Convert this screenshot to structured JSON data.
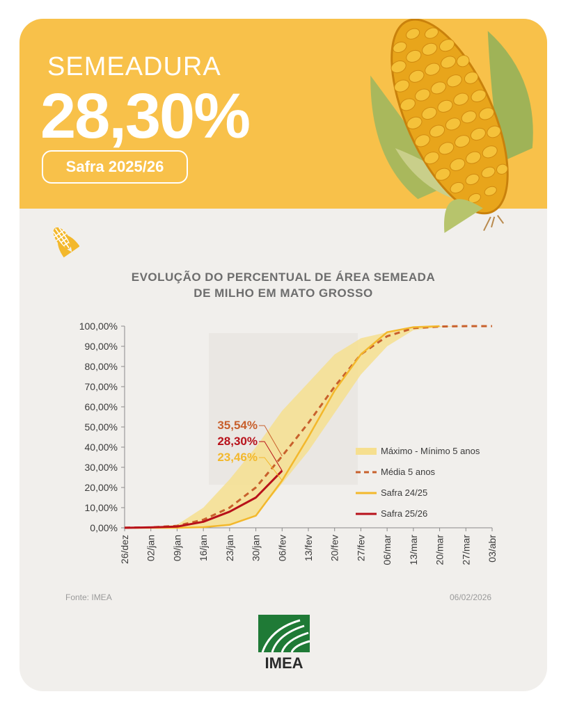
{
  "header": {
    "title": "SEMEADURA",
    "value": "28,30%",
    "season": "Safra 2025/26"
  },
  "footer": {
    "source": "Fonte: IMEA",
    "date": "06/02/2026",
    "logo_text": "IMEA"
  },
  "colors": {
    "banner": "#f8c14a",
    "band": "#f6df8f",
    "media": "#c8602c",
    "safra_24_25": "#f3b82c",
    "safra_25_26": "#b8111a"
  },
  "chart_data": {
    "type": "line",
    "title_lines": [
      "EVOLUÇÃO DO PERCENTUAL DE ÁREA SEMEADA",
      "DE MILHO EM MATO GROSSO"
    ],
    "categories": [
      "26/dez",
      "02/jan",
      "09/jan",
      "16/jan",
      "23/jan",
      "30/jan",
      "06/fev",
      "13/fev",
      "20/fev",
      "27/fev",
      "06/mar",
      "13/mar",
      "20/mar",
      "27/mar",
      "03/abr"
    ],
    "y_ticks": [
      "0,00%",
      "10,00%",
      "20,00%",
      "30,00%",
      "40,00%",
      "50,00%",
      "60,00%",
      "70,00%",
      "80,00%",
      "90,00%",
      "100,00%"
    ],
    "ylim": [
      0,
      100
    ],
    "band": {
      "name": "Máximo - Mínimo 5 anos",
      "max": [
        0.2,
        0.4,
        1.5,
        10,
        24,
        40,
        58,
        72,
        86,
        94,
        97,
        99,
        100,
        100,
        100
      ],
      "min": [
        0,
        0,
        0,
        0,
        1,
        6,
        22,
        38,
        57,
        76,
        90,
        98,
        99.5,
        100,
        100
      ]
    },
    "series": [
      {
        "name": "Média 5 anos",
        "style": "dashed",
        "values": [
          0.1,
          0.2,
          1,
          4,
          10,
          20,
          35.54,
          52,
          70,
          86,
          95,
          99,
          99.8,
          100,
          100
        ]
      },
      {
        "name": "Safra 24/25",
        "style": "solid",
        "values": [
          0,
          0,
          0,
          0.3,
          1.5,
          6,
          23.46,
          45,
          68,
          86,
          97,
          99.5,
          100,
          null,
          null
        ]
      },
      {
        "name": "Safra 25/26",
        "style": "solid",
        "values": [
          0,
          0.2,
          0.6,
          3,
          8,
          15,
          28.3,
          null,
          null,
          null,
          null,
          null,
          null,
          null,
          null
        ]
      }
    ],
    "annotations": [
      {
        "text": "35,54%",
        "series": "Média 5 anos",
        "value": 35.54
      },
      {
        "text": "28,30%",
        "series": "Safra 25/26",
        "value": 28.3
      },
      {
        "text": "23,46%",
        "series": "Safra 24/25",
        "value": 23.46
      }
    ],
    "legend_position": "right"
  }
}
